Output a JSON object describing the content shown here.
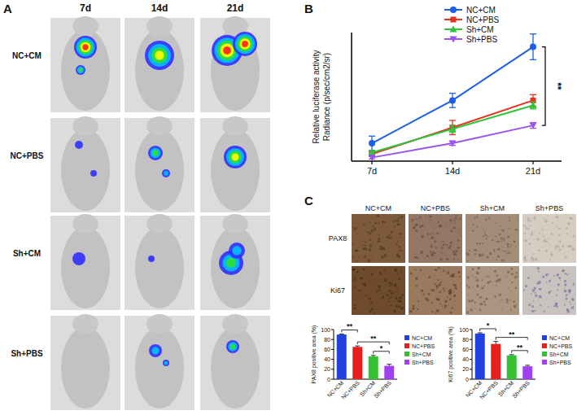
{
  "panel_labels": [
    "A",
    "B",
    "C"
  ],
  "imaging": {
    "days": [
      "7d",
      "14d",
      "21d"
    ],
    "groups": [
      "NC+CM",
      "NC+PBS",
      "Sh+CM",
      "Sh+PBS"
    ]
  },
  "ihc": {
    "groups": [
      "NC+CM",
      "NC+PBS",
      "Sh+CM",
      "Sh+PBS"
    ],
    "markers": [
      "PAX8",
      "Ki67"
    ]
  },
  "chart_data": [
    {
      "type": "line",
      "ylabel": [
        "Relative luciferase activity",
        "Radiance (p/sec/cm2/sr)"
      ],
      "categories": [
        "7d",
        "14d",
        "21d"
      ],
      "ylim": [
        0,
        18
      ],
      "tick_labels": "x",
      "grid": false,
      "legend": "top",
      "series": [
        {
          "name": "NC+CM",
          "color": "#1f5fe8",
          "marker": "circle",
          "values": [
            2.5,
            8.5,
            16
          ],
          "errors": [
            1.0,
            1.0,
            1.8
          ]
        },
        {
          "name": "NC+PBS",
          "color": "#e83020",
          "marker": "square",
          "values": [
            1.0,
            4.7,
            8.5
          ],
          "errors": [
            0.3,
            1.0,
            0.8
          ]
        },
        {
          "name": "Sh+CM",
          "color": "#2fc43c",
          "marker": "triangle-up",
          "values": [
            1.2,
            4.5,
            7.8
          ],
          "errors": [
            0.3,
            0.5,
            0.5
          ]
        },
        {
          "name": "Sh+PBS",
          "color": "#9955ee",
          "marker": "triangle-down",
          "values": [
            0.5,
            2.5,
            5.0
          ],
          "errors": [
            0.2,
            0.3,
            0.4
          ]
        }
      ],
      "annotations": [
        {
          "text": "**",
          "between": [
            "NC+CM",
            "Sh+PBS"
          ],
          "at": "21d"
        }
      ]
    },
    {
      "type": "bar",
      "ylabel": "PAX8 positive area (%)",
      "categories": [
        "NC+CM",
        "NC+PBS",
        "Sh+CM",
        "Sh+PBS"
      ],
      "values": [
        90,
        65,
        46,
        27
      ],
      "errors": [
        1,
        2,
        2,
        3
      ],
      "colors": [
        "#2040e0",
        "#e8201c",
        "#33c033",
        "#a040f0"
      ],
      "ylim": [
        0,
        100
      ],
      "yticks": [
        0,
        20,
        40,
        60,
        80,
        100
      ],
      "grid": false,
      "legend": "right",
      "annotations": [
        {
          "text": "**",
          "between": [
            "NC+CM",
            "NC+PBS"
          ]
        },
        {
          "text": "**",
          "between": [
            "NC+PBS",
            "Sh+PBS"
          ]
        },
        {
          "text": "*",
          "between": [
            "Sh+CM",
            "Sh+PBS"
          ]
        }
      ]
    },
    {
      "type": "bar",
      "ylabel": "Ki67 positive area (%)",
      "categories": [
        "NC+CM",
        "NC+PBS",
        "Sh+CM",
        "Sh+PBS"
      ],
      "values": [
        92,
        71,
        48,
        26
      ],
      "errors": [
        1.5,
        5,
        1.5,
        2
      ],
      "colors": [
        "#2040e0",
        "#e8201c",
        "#33c033",
        "#a040f0"
      ],
      "ylim": [
        0,
        100
      ],
      "yticks": [
        0,
        20,
        40,
        60,
        80,
        100
      ],
      "grid": false,
      "legend": "right",
      "annotations": [
        {
          "text": "*",
          "between": [
            "NC+CM",
            "NC+PBS"
          ]
        },
        {
          "text": "**",
          "between": [
            "NC+PBS",
            "Sh+PBS"
          ]
        },
        {
          "text": "**",
          "between": [
            "Sh+CM",
            "Sh+PBS"
          ]
        }
      ]
    }
  ]
}
